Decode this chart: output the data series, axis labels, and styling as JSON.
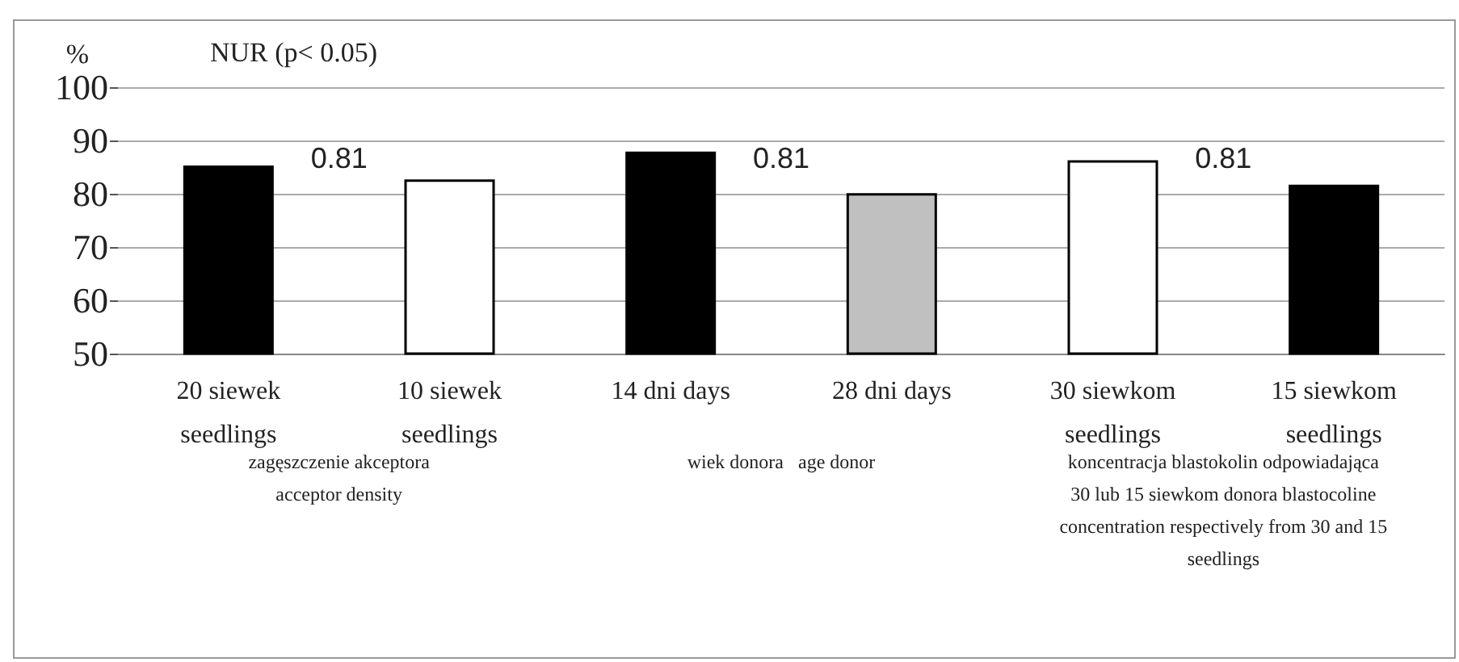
{
  "chart_data": {
    "type": "bar",
    "title": "NUR (p< 0.05)",
    "ylabel": "%",
    "categories": [
      "20 siewek\nseedlings",
      "10 siewek\nseedlings",
      "14 dni days",
      "28 dni days",
      "30 siewkom\nseedlings",
      "15 siewkom\nseedlings"
    ],
    "values": [
      85.3,
      82.7,
      87.9,
      80.1,
      86.3,
      81.7
    ],
    "colors": [
      "#000000",
      "#ffffff",
      "#000000",
      "#c0c0c0",
      "#ffffff",
      "#000000"
    ],
    "ylim": [
      50,
      100
    ],
    "yticks": [
      50,
      60,
      70,
      80,
      90,
      100
    ],
    "grid": "y",
    "annotations": [
      "0.81",
      "0.81",
      "0.81",
      "zagęszczenie akceptora\nacceptor density",
      "wiek donora   age donor",
      "koncentracja blastokolin odpowiadająca\n30 lub 15 siewkom donora blastocoline\nconcentration respectively from 30 and 15\nseedlings"
    ]
  }
}
